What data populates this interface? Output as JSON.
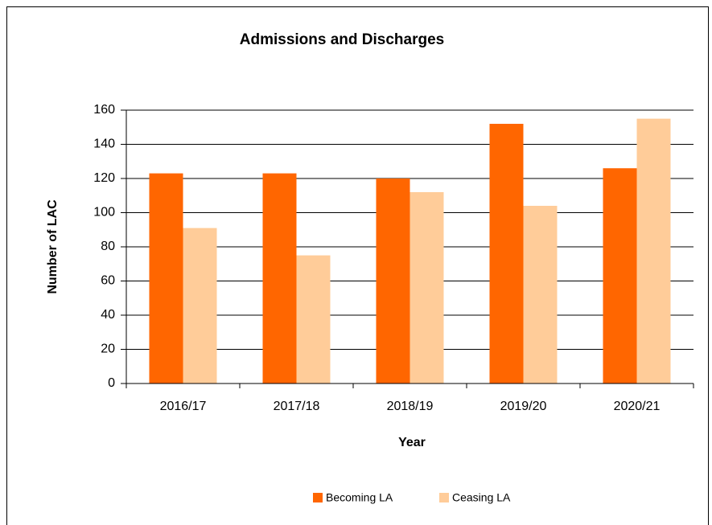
{
  "chart_data": {
    "type": "bar",
    "title": "Admissions  and Discharges",
    "x_label": "Year",
    "y_label": "Number of LAC",
    "categories": [
      "2016/17",
      "2017/18",
      "2018/19",
      "2019/20",
      "2020/21"
    ],
    "series": [
      {
        "name": "Becoming LA",
        "color": "#ff6600",
        "values": [
          123,
          123,
          120,
          152,
          126
        ]
      },
      {
        "name": "Ceasing LA",
        "color": "#ffcc99",
        "values": [
          91,
          75,
          112,
          104,
          155
        ]
      }
    ],
    "ylim": [
      0,
      160
    ],
    "yticks": [
      0,
      20,
      40,
      60,
      80,
      100,
      120,
      140,
      160
    ],
    "grid": true,
    "legend": "bottom"
  }
}
